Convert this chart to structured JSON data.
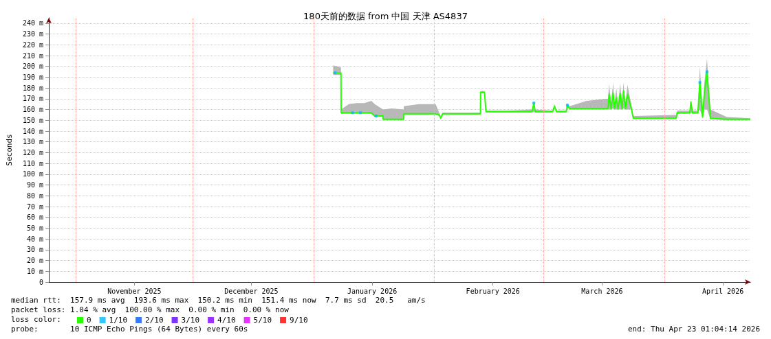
{
  "chart_data": {
    "type": "line",
    "title": "180天前的数据 from 中国 天津 AS4837",
    "ylabel": "Seconds",
    "xlim": [
      "2025-10-25T01:04",
      "2026-04-23T01:04"
    ],
    "xticks": [
      {
        "value": "2025-11-16",
        "label": "November 2025"
      },
      {
        "value": "2025-12-16",
        "label": "December 2025"
      },
      {
        "value": "2026-01-16",
        "label": "January 2026"
      },
      {
        "value": "2026-02-16",
        "label": "February 2026"
      },
      {
        "value": "2026-03-16",
        "label": "March 2026"
      },
      {
        "value": "2026-04-16",
        "label": "April 2026"
      }
    ],
    "ylim": [
      0,
      245
    ],
    "yticks": [
      0,
      {
        "value": 10,
        "label": "10 m"
      },
      {
        "value": 20,
        "label": "20 m"
      },
      {
        "value": 30,
        "label": "30 m"
      },
      {
        "value": 40,
        "label": "40 m"
      },
      {
        "value": 50,
        "label": "50 m"
      },
      {
        "value": 60,
        "label": "60 m"
      },
      {
        "value": 70,
        "label": "70 m"
      },
      {
        "value": 80,
        "label": "80 m"
      },
      {
        "value": 90,
        "label": "90 m"
      },
      {
        "value": 100,
        "label": "100 m"
      },
      {
        "value": 110,
        "label": "110 m"
      },
      {
        "value": 120,
        "label": "120 m"
      },
      {
        "value": 130,
        "label": "130 m"
      },
      {
        "value": 140,
        "label": "140 m"
      },
      {
        "value": 150,
        "label": "150 m"
      },
      {
        "value": 160,
        "label": "160 m"
      },
      {
        "value": 170,
        "label": "170 m"
      },
      {
        "value": 180,
        "label": "180 m"
      },
      {
        "value": 190,
        "label": "190 m"
      },
      {
        "value": 200,
        "label": "200 m"
      },
      {
        "value": 210,
        "label": "210 m"
      },
      {
        "value": 220,
        "label": "220 m"
      },
      {
        "value": 230,
        "label": "230 m"
      },
      {
        "value": 240,
        "label": "240 m"
      }
    ],
    "grid": "y",
    "ref_lines": [
      {
        "axis": "x",
        "value": "2025-11-01",
        "label": null,
        "color": "#ffaaaa",
        "line_style": "dotted"
      },
      {
        "axis": "x",
        "value": "2025-12-01",
        "label": null,
        "color": "#ffaaaa",
        "line_style": "dotted"
      },
      {
        "axis": "x",
        "value": "2026-01-01",
        "label": null,
        "color": "#ffaaaa",
        "line_style": "dotted"
      },
      {
        "axis": "x",
        "value": "2026-02-01",
        "label": null,
        "color": "#ffaaaa",
        "line_style": "dotted"
      },
      {
        "axis": "x",
        "value": "2026-03-01",
        "label": null,
        "color": "#ffaaaa",
        "line_style": "dotted"
      },
      {
        "axis": "x",
        "value": "2026-04-01",
        "label": null,
        "color": "#ffaaaa",
        "line_style": "dotted"
      }
    ],
    "legend": "bottom left",
    "legend_title": "loss color:",
    "series": [
      {
        "name": "0",
        "color": "#26ff00",
        "marker": "none",
        "x": [
          "2026-01-06T00:00",
          "2026-01-08T00:00",
          "2026-01-08T01:00",
          "2026-01-10",
          "2026-01-12",
          "2026-01-14",
          "2026-01-15T19:00",
          "2026-01-16T16:00",
          "2026-01-18T19:00",
          "2026-01-18T20:00",
          "2026-01-21",
          "2026-01-24T02:00",
          "2026-01-24T03:00",
          "2026-01-28",
          "2026-02-01T07:00",
          "2026-02-02T05:00",
          "2026-02-02T14:00",
          "2026-02-03T02:00",
          "2026-02-08",
          "2026-02-12T19:00",
          "2026-02-12T20:00",
          "2026-02-13T20:00",
          "2026-02-14T05:00",
          "2026-02-20",
          "2026-02-26T00:00",
          "2026-02-26T12:00",
          "2026-02-26T20:00",
          "2026-03-03T07:00",
          "2026-03-03T19:00",
          "2026-03-04T07:00",
          "2026-03-06T19:00",
          "2026-03-07T02:00",
          "2026-03-07T16:00",
          "2026-03-12",
          "2026-03-17T12:00",
          "2026-03-17T20:00",
          "2026-03-18T06:00",
          "2026-03-18T20:00",
          "2026-03-19T04:00",
          "2026-03-19T16:00",
          "2026-03-20T02:00",
          "2026-03-20T16:00",
          "2026-03-21T02:00",
          "2026-03-21T12:00",
          "2026-03-22T00:00",
          "2026-03-22T12:00",
          "2026-03-23T12:00",
          "2026-03-24T00:00",
          "2026-04-04T00:00",
          "2026-04-04T07:00",
          "2026-04-07T12:00",
          "2026-04-07T19:00",
          "2026-04-08T04:00",
          "2026-04-09T14:00",
          "2026-04-10T02:00",
          "2026-04-10T19:00",
          "2026-04-11T06:00",
          "2026-04-11T22:00",
          "2026-04-12T19:00",
          "2026-04-17",
          "2026-04-23T00:00"
        ],
        "values": [
          194,
          194,
          157,
          157,
          157,
          157,
          157,
          154,
          154,
          151,
          151,
          151,
          156,
          156,
          156,
          155,
          152,
          156,
          156,
          156,
          176,
          176,
          158,
          158,
          158,
          166,
          158,
          158,
          163,
          158,
          158,
          164,
          161,
          161,
          161,
          174,
          161,
          175,
          161,
          171,
          161,
          175,
          161,
          177,
          161,
          174,
          161,
          152,
          152,
          157,
          157,
          167,
          157,
          157,
          185,
          153,
          175,
          195,
          152,
          151,
          151
        ],
        "lower": [
          192,
          192,
          156,
          156,
          156,
          156,
          156,
          153,
          153,
          150,
          150,
          150,
          155,
          155,
          155,
          154,
          151,
          155,
          155,
          155,
          175,
          175,
          157,
          157,
          157,
          158,
          157,
          157,
          161,
          157,
          157,
          162,
          160,
          160,
          160,
          160,
          160,
          161,
          160,
          160,
          160,
          160,
          160,
          161,
          160,
          160,
          160,
          151,
          151,
          156,
          156,
          157,
          156,
          156,
          160,
          152,
          160,
          160,
          151,
          150,
          150
        ],
        "upper": [
          201,
          199,
          160,
          165,
          166,
          166,
          168,
          165,
          160,
          160,
          161,
          160,
          163,
          165,
          165,
          157,
          154,
          157,
          157,
          157,
          177,
          177,
          159,
          159,
          160,
          167,
          160,
          159,
          165,
          159,
          159,
          166,
          163,
          168,
          170,
          184,
          165,
          185,
          165,
          180,
          165,
          184,
          165,
          185,
          165,
          183,
          165,
          154,
          155,
          159,
          159,
          168,
          159,
          159,
          200,
          160,
          185,
          207,
          160,
          153,
          152
        ]
      },
      {
        "name": "1/10",
        "type": "scatter",
        "color": "#00b8ff",
        "marker": "square",
        "x": [
          "2026-01-06T12:00",
          "2026-01-11",
          "2026-01-13",
          "2026-01-17",
          "2026-02-26T12:00",
          "2026-03-07T02:00",
          "2026-04-10T02:00",
          "2026-04-11T22:00"
        ],
        "values": [
          194,
          157,
          157,
          154,
          166,
          164,
          185,
          195
        ]
      },
      {
        "name": "2/10",
        "type": "scatter",
        "color": "#0059ff",
        "marker": "square"
      },
      {
        "name": "3/10",
        "type": "scatter",
        "color": "#5e00ff",
        "marker": "square"
      },
      {
        "name": "4/10",
        "type": "scatter",
        "color": "#7e00ff",
        "marker": "square"
      },
      {
        "name": "5/10",
        "type": "scatter",
        "color": "#dd00ff",
        "marker": "square"
      },
      {
        "name": "9/10",
        "type": "scatter",
        "color": "#ff0000",
        "marker": "square"
      }
    ],
    "annotations": [
      "median rtt:  157.9 ms avg  193.6 ms max  150.2 ms min  151.4 ms now  7.7 ms sd  20.5   am/s",
      "packet loss: 1.04 % avg  100.00 % max  0.00 % min  0.00 % now",
      "probe:       10 ICMP Echo Pings (64 Bytes) every 60s",
      "end: Thu Apr 23 01:04:14 2026"
    ]
  }
}
